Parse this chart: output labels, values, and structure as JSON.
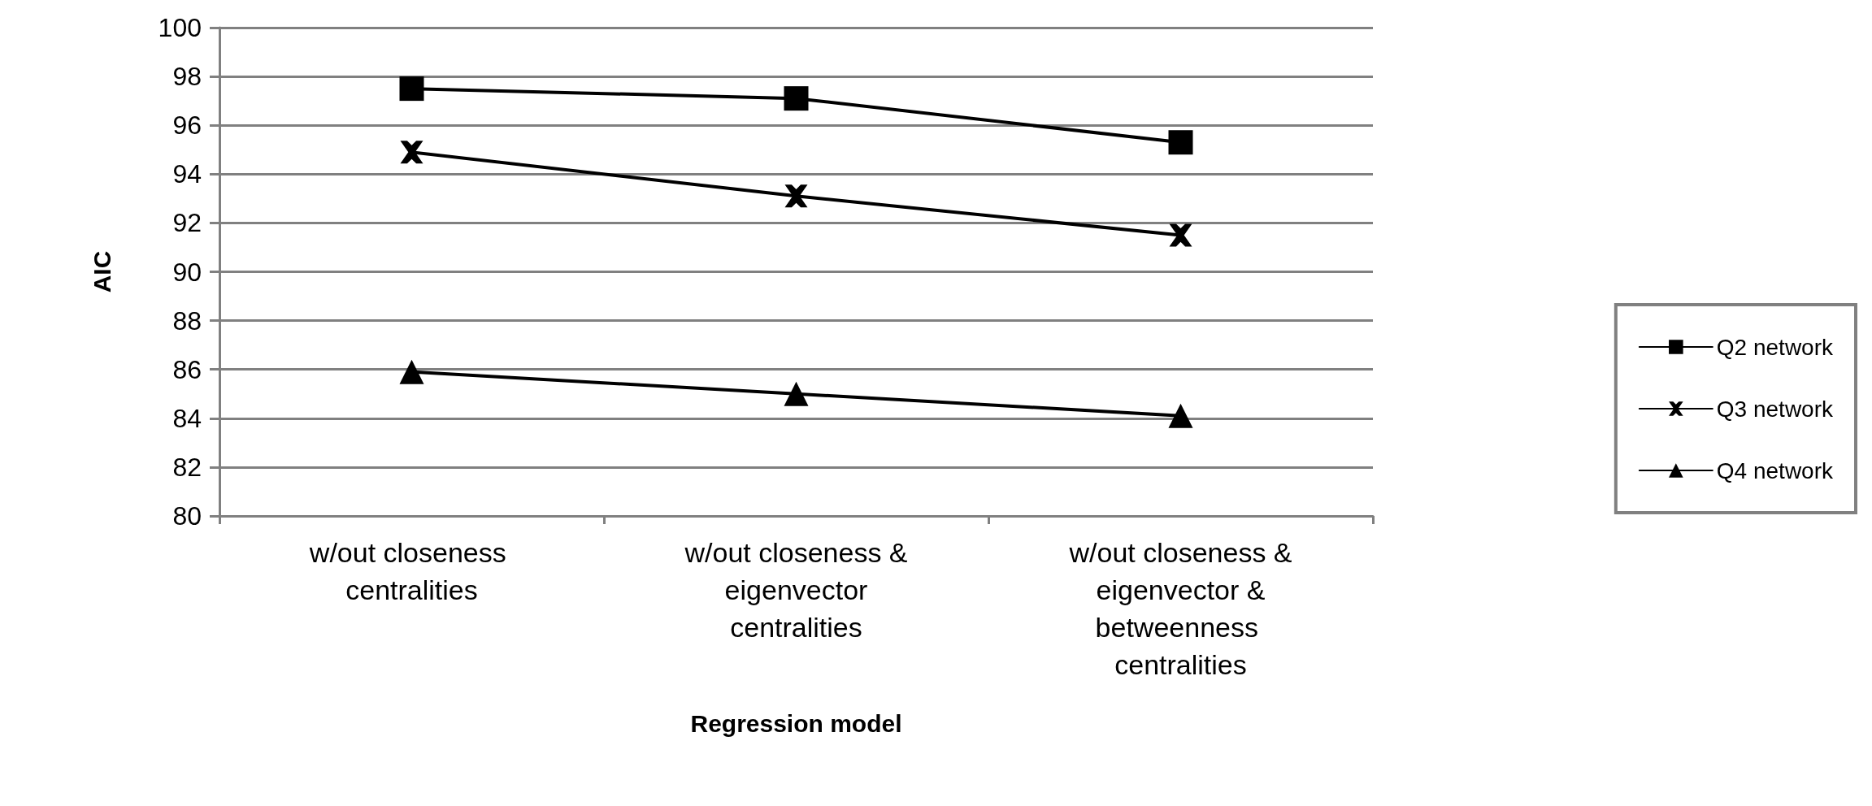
{
  "chart_data": {
    "type": "line",
    "xlabel": "Regression model",
    "ylabel": "AIC",
    "categories": [
      "w/out closeness centralities",
      "w/out closeness & eigenvector centralities",
      "w/out closeness & eigenvector & betweenness centralities"
    ],
    "series": [
      {
        "name": "Q2 network",
        "color": "#000000",
        "marker": "square",
        "values": [
          97.5,
          97.1,
          95.3
        ]
      },
      {
        "name": "Q3 network",
        "color": "#000000",
        "marker": "cross",
        "values": [
          94.9,
          93.1,
          91.5
        ]
      },
      {
        "name": "Q4 network",
        "color": "#000000",
        "marker": "triangle",
        "values": [
          85.9,
          85.0,
          84.1
        ]
      }
    ],
    "ylim": [
      80,
      100
    ],
    "yticks": [
      80,
      82,
      84,
      86,
      88,
      90,
      92,
      94,
      96,
      98,
      100
    ],
    "grid": "y",
    "legend": "right",
    "line_style": "solid"
  }
}
